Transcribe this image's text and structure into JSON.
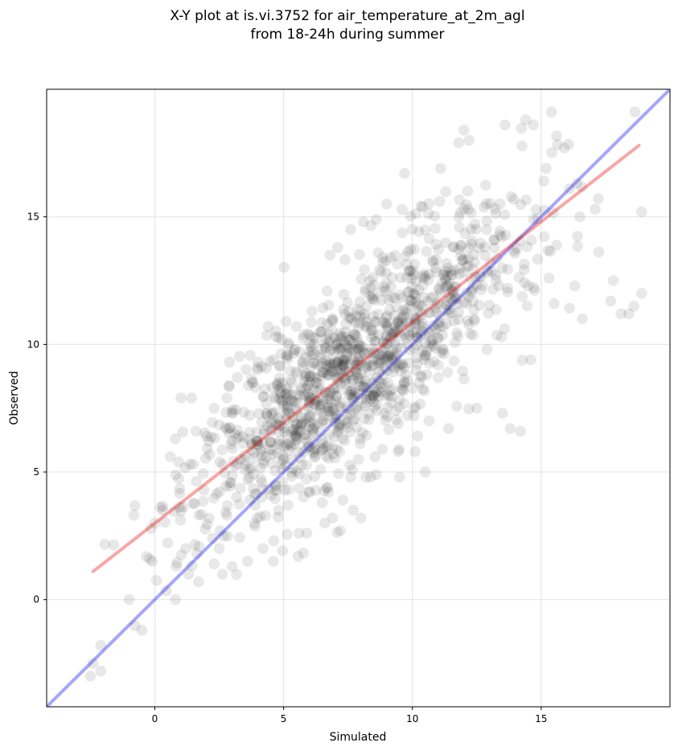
{
  "chart_data": {
    "type": "scatter",
    "title_lines": [
      "X-Y plot at is.vi.3752 for air_temperature_at_2m_agl",
      "from 18-24h during summer"
    ],
    "xlabel": "Simulated",
    "ylabel": "Observed",
    "xlim": [
      -4.2,
      20.0
    ],
    "ylim": [
      -4.2,
      20.0
    ],
    "xticks": [
      0,
      5,
      10,
      15
    ],
    "yticks": [
      0,
      5,
      10,
      15
    ],
    "grid": true,
    "point_color": "#000000",
    "point_alpha": 0.09,
    "identity_line": {
      "color": "#0000ee",
      "alpha": 0.35,
      "from": [
        -4.2,
        -4.2
      ],
      "to": [
        20.0,
        20.0
      ]
    },
    "regression_line": {
      "color": "#ee0000",
      "alpha": 0.35,
      "from": [
        -2.4,
        1.1
      ],
      "to": [
        18.8,
        17.8
      ]
    },
    "points_sample": [
      [
        -2.4,
        -2.5
      ],
      [
        -2.5,
        -3.0
      ],
      [
        -2.1,
        -1.8
      ],
      [
        -2.1,
        -2.8
      ],
      [
        -1.0,
        0.0
      ],
      [
        -0.5,
        -1.2
      ],
      [
        -0.2,
        1.6
      ],
      [
        -0.1,
        1.5
      ],
      [
        0.0,
        3.0
      ],
      [
        0.3,
        3.5
      ],
      [
        0.6,
        5.6
      ],
      [
        0.8,
        6.3
      ],
      [
        0.8,
        0.0
      ],
      [
        1.2,
        2.0
      ],
      [
        1.5,
        5.3
      ],
      [
        1.7,
        0.7
      ],
      [
        2.3,
        1.4
      ],
      [
        2.5,
        2.0
      ],
      [
        1.6,
        6.6
      ],
      [
        2.3,
        7.5
      ],
      [
        2.8,
        7.9
      ],
      [
        3.2,
        8.7
      ],
      [
        4.0,
        9.0
      ],
      [
        4.4,
        10.7
      ],
      [
        4.6,
        9.4
      ],
      [
        5.1,
        10.9
      ],
      [
        5.5,
        10.7
      ],
      [
        6.1,
        11.3
      ],
      [
        6.8,
        13.5
      ],
      [
        7.1,
        13.8
      ],
      [
        7.6,
        14.5
      ],
      [
        8.1,
        14.8
      ],
      [
        8.6,
        14.9
      ],
      [
        9.0,
        15.5
      ],
      [
        9.7,
        16.7
      ],
      [
        10.4,
        15.4
      ],
      [
        11.1,
        16.9
      ],
      [
        11.8,
        17.9
      ],
      [
        12.0,
        18.4
      ],
      [
        12.2,
        18.0
      ],
      [
        13.6,
        18.6
      ],
      [
        14.4,
        18.8
      ],
      [
        14.7,
        18.6
      ],
      [
        15.1,
        16.4
      ],
      [
        15.9,
        17.7
      ],
      [
        16.1,
        16.1
      ],
      [
        16.5,
        15.0
      ],
      [
        17.1,
        15.3
      ],
      [
        17.7,
        11.7
      ],
      [
        17.8,
        12.5
      ],
      [
        18.1,
        11.2
      ],
      [
        18.4,
        11.2
      ],
      [
        18.6,
        11.5
      ],
      [
        18.9,
        12.0
      ],
      [
        18.9,
        15.2
      ],
      [
        16.3,
        12.3
      ],
      [
        16.6,
        11.0
      ],
      [
        15.5,
        11.6
      ],
      [
        15.3,
        12.6
      ],
      [
        14.6,
        9.4
      ],
      [
        14.2,
        6.6
      ],
      [
        13.8,
        6.7
      ],
      [
        13.5,
        7.3
      ],
      [
        12.9,
        9.8
      ],
      [
        12.5,
        7.5
      ],
      [
        11.4,
        6.7
      ],
      [
        10.5,
        5.0
      ],
      [
        10.1,
        5.8
      ],
      [
        9.5,
        4.8
      ],
      [
        8.6,
        4.9
      ],
      [
        8.2,
        4.8
      ],
      [
        7.6,
        4.8
      ],
      [
        7.3,
        3.9
      ],
      [
        6.9,
        3.2
      ],
      [
        6.6,
        3.0
      ],
      [
        5.9,
        2.6
      ],
      [
        5.6,
        2.6
      ],
      [
        4.6,
        1.5
      ],
      [
        4.2,
        2.0
      ],
      [
        3.6,
        1.5
      ],
      [
        3.0,
        1.3
      ],
      [
        7.2,
        2.7
      ],
      [
        7.7,
        3.5
      ],
      [
        8.0,
        3.2
      ],
      [
        6.5,
        3.8
      ],
      [
        6.0,
        4.2
      ],
      [
        5.2,
        4.3
      ],
      [
        4.8,
        3.5
      ],
      [
        3.9,
        3.7
      ],
      [
        2.8,
        3.3
      ]
    ]
  }
}
